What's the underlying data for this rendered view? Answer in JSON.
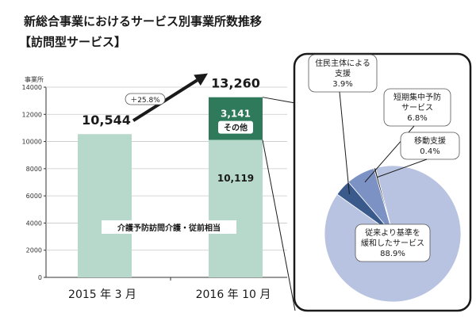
{
  "title_line1": "新総合事業におけるサービス別事業所数推移",
  "title_line2": "【訪問型サービス】",
  "chart_data": [
    {
      "type": "bar",
      "ylabel": "事業所",
      "ylim": [
        0,
        14000
      ],
      "yticks": [
        0,
        2000,
        4000,
        6000,
        8000,
        10000,
        12000,
        14000
      ],
      "categories": [
        "2015 年 3 月",
        "2016 年 10 月"
      ],
      "series": [
        {
          "name": "介護予防訪問介護・従前相当",
          "values": [
            10544,
            10119
          ]
        },
        {
          "name": "その他",
          "values": [
            0,
            3141
          ]
        }
      ],
      "totals": [
        "10,544",
        "13,260"
      ],
      "segment_labels": [
        "10,119",
        "3,141"
      ],
      "growth_label": "＋25.8%",
      "colors": {
        "base": "#b6d9cc",
        "other": "#2f7a5a",
        "arrow": "#1a1a1a"
      }
    },
    {
      "type": "pie",
      "slices": [
        {
          "label_lines": [
            "従来より基準を",
            "緩和したサービス"
          ],
          "pct_label": "88.9%",
          "value": 88.9,
          "color": "#b7c3e0"
        },
        {
          "label_lines": [
            "住民主体による",
            "支援"
          ],
          "pct_label": "3.9%",
          "value": 3.9,
          "color": "#3a5a8c"
        },
        {
          "label_lines": [
            "短期集中予防",
            "サービス"
          ],
          "pct_label": "6.8%",
          "value": 6.8,
          "color": "#7d92c4"
        },
        {
          "label_lines": [
            "移動支援"
          ],
          "pct_label": "0.4%",
          "value": 0.4,
          "color": "#1a1a1a"
        }
      ]
    }
  ]
}
